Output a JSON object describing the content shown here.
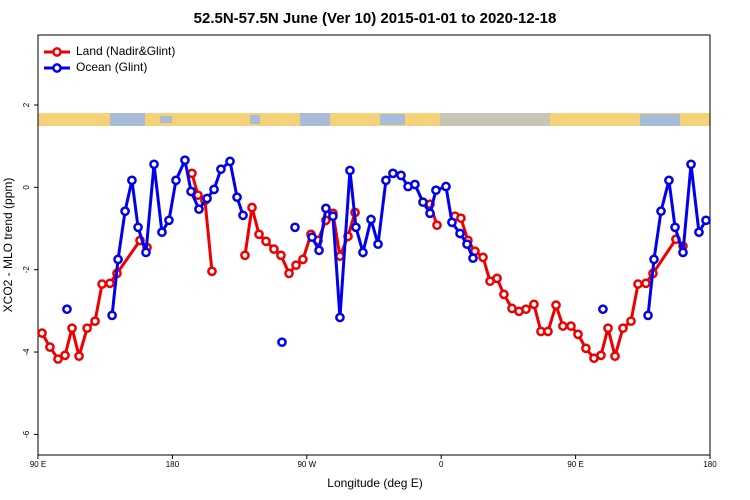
{
  "chart_data": {
    "type": "line",
    "title": "52.5N-57.5N June (Ver 10)   2015-01-01 to 2020-12-18",
    "x_label": "Longitude (deg E)",
    "y_label": "XCO2 - MLO trend (ppm)",
    "xlim": [
      90,
      540
    ],
    "xticks": [
      {
        "value": 90,
        "label": "90 E"
      },
      {
        "value": 180,
        "label": "180"
      },
      {
        "value": 270,
        "label": "90 W"
      },
      {
        "value": 360,
        "label": "0"
      },
      {
        "value": 450,
        "label": "90 E"
      },
      {
        "value": 540,
        "label": "180"
      }
    ],
    "ylim": [
      -6.5,
      3.7
    ],
    "yticks": [
      -6,
      -4,
      -2,
      0,
      2
    ],
    "legend": "top-left",
    "series": [
      {
        "name": "Land (Nadir&Glint)",
        "color": "#ee0000",
        "x": [
          92.7,
          98.0,
          103.4,
          108.1,
          112.8,
          117.5,
          122.9,
          128.2,
          132.9,
          138.2,
          142.9,
          158.3,
          163.0,
          null,
          193.1,
          197.1,
          201.8,
          206.5,
          null,
          228.6,
          233.3,
          238.0,
          242.7,
          248.0,
          252.7,
          258.1,
          262.8,
          267.4,
          272.8,
          277.5,
          282.8,
          287.5,
          292.2,
          297.6,
          302.3,
          null,
          352.5,
          357.2,
          null,
          369.2,
          373.2,
          377.9,
          382.6,
          388.0,
          392.7,
          397.4,
          402.0,
          407.4,
          412.1,
          416.8,
          422.1,
          426.8,
          431.5,
          436.9,
          441.5,
          446.9,
          451.6,
          456.9,
          462.3,
          467.0,
          471.7,
          476.4,
          481.7,
          487.1,
          491.8,
          497.1,
          501.8,
          517.2,
          521.9
        ],
        "values": [
          -3.54,
          -3.88,
          -4.17,
          -4.08,
          -3.42,
          -4.1,
          -3.42,
          -3.25,
          -2.35,
          -2.33,
          -2.09,
          -1.29,
          -1.46,
          null,
          0.34,
          -0.19,
          -0.32,
          -2.04,
          null,
          -1.65,
          -0.49,
          -1.14,
          -1.31,
          -1.5,
          -1.65,
          -2.09,
          -1.89,
          -1.75,
          -1.14,
          -1.29,
          -0.8,
          -0.63,
          -1.67,
          -1.19,
          -0.61,
          null,
          -0.41,
          -0.92,
          null,
          -0.7,
          -0.75,
          -1.29,
          -1.55,
          -1.7,
          -2.28,
          -2.21,
          -2.6,
          -2.94,
          -3.01,
          -2.96,
          -2.84,
          -3.5,
          -3.5,
          -2.86,
          -3.37,
          -3.37,
          -3.57,
          -3.91,
          -4.15,
          -4.08,
          -3.42,
          -4.1,
          -3.42,
          -3.25,
          -2.35,
          -2.33,
          -2.09,
          -1.26,
          -1.43
        ]
      },
      {
        "name": "Ocean (Glint)",
        "color": "#0000ee",
        "x": [
          109.4,
          null,
          139.6,
          143.6,
          148.3,
          152.9,
          157.0,
          162.3,
          167.7,
          173.0,
          177.7,
          182.4,
          188.4,
          192.5,
          197.8,
          203.2,
          207.9,
          212.5,
          218.6,
          223.3,
          227.3,
          null,
          253.4,
          null,
          262.1,
          null,
          273.5,
          278.2,
          282.8,
          287.5,
          292.2,
          298.9,
          302.9,
          307.6,
          313.0,
          317.7,
          323.0,
          327.7,
          333.1,
          337.8,
          342.4,
          347.8,
          352.5,
          356.5,
          363.2,
          367.2,
          372.6,
          377.3,
          381.3,
          null,
          468.3,
          null,
          498.5,
          502.5,
          507.2,
          512.5,
          516.6,
          521.9,
          527.3,
          532.6,
          537.3
        ],
        "values": [
          -2.96,
          null,
          -3.11,
          -1.75,
          -0.58,
          0.17,
          -0.97,
          -1.58,
          0.56,
          -1.09,
          -0.8,
          0.17,
          0.66,
          -0.1,
          -0.53,
          -0.27,
          -0.05,
          0.44,
          0.63,
          -0.24,
          -0.68,
          null,
          -3.76,
          null,
          -0.97,
          null,
          -1.21,
          -1.53,
          -0.51,
          -0.7,
          -3.16,
          0.41,
          -0.97,
          -1.58,
          -0.78,
          -1.38,
          0.17,
          0.34,
          0.29,
          0.02,
          0.07,
          -0.36,
          -0.63,
          -0.07,
          0.02,
          -0.85,
          -1.12,
          -1.38,
          -1.72,
          null,
          -2.96,
          null,
          -3.11,
          -1.75,
          -0.58,
          0.17,
          -0.97,
          -1.58,
          0.56,
          -1.09,
          -0.8
        ]
      }
    ]
  }
}
